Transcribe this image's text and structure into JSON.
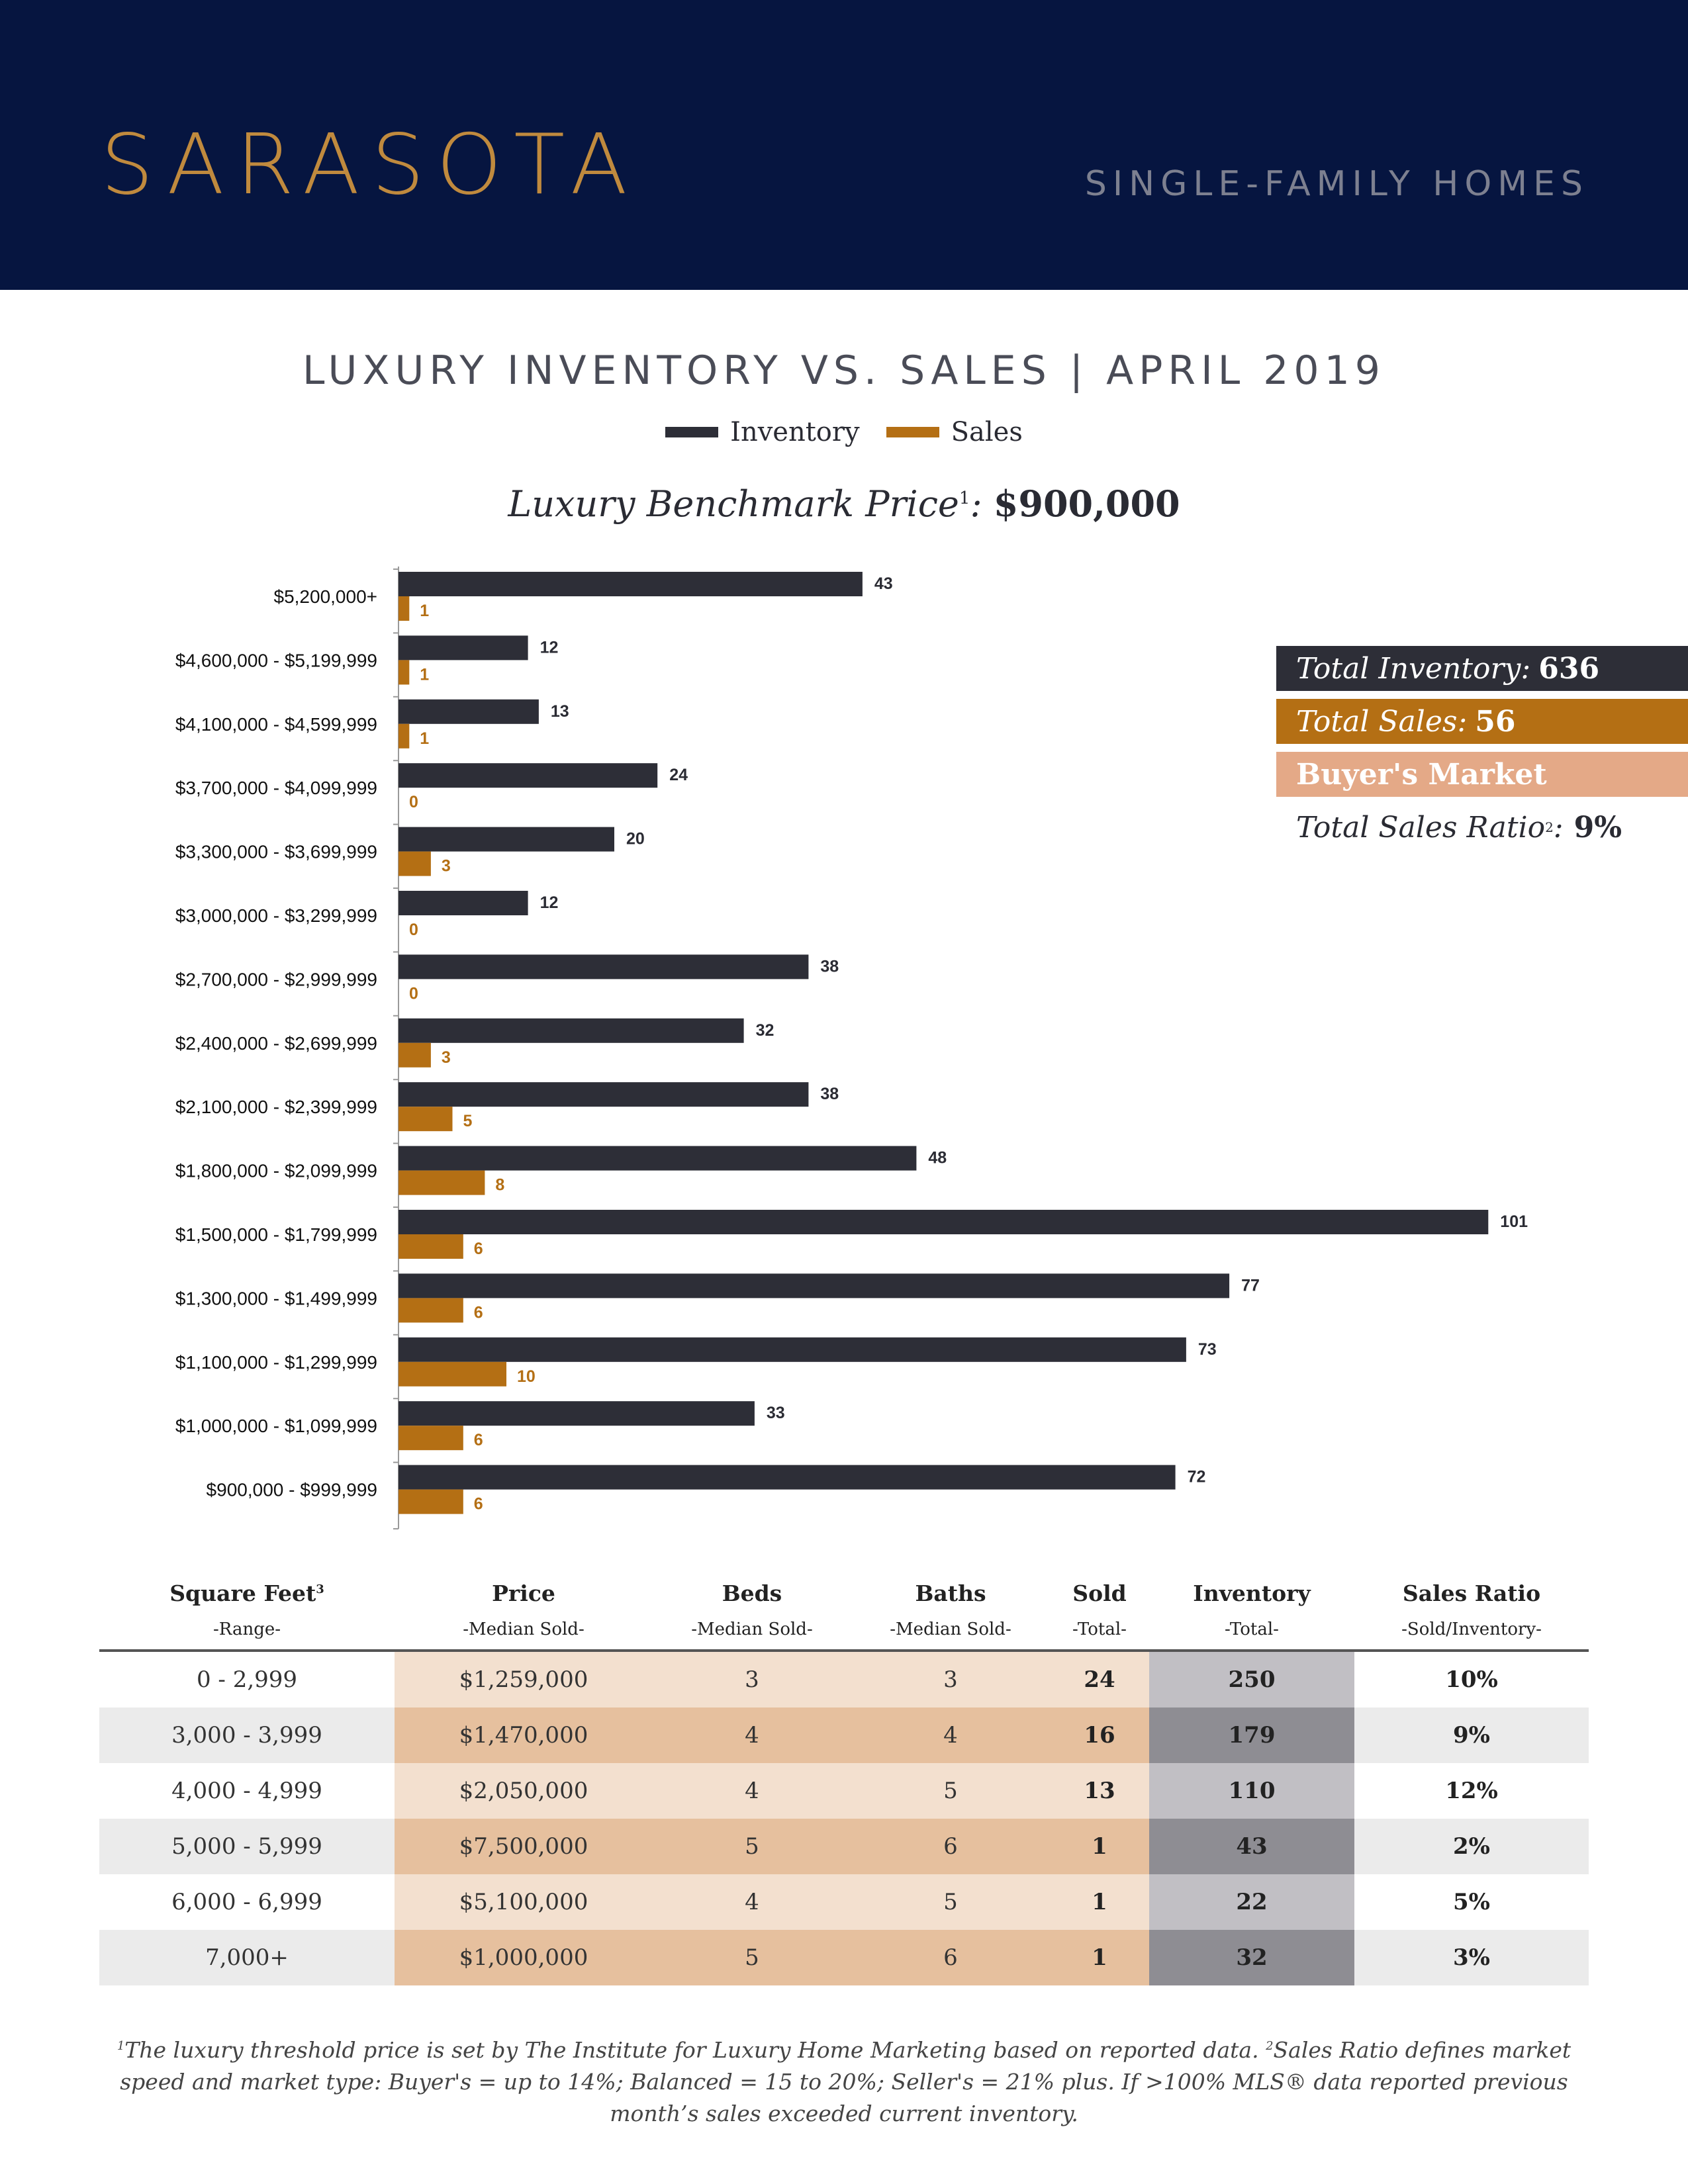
{
  "header": {
    "city": "SARASOTA",
    "subtitle": "SINGLE-FAMILY HOMES"
  },
  "colors": {
    "navy": "#061540",
    "gold": "#c08a3e",
    "inventory": "#2d2e37",
    "sales": "#b46f14",
    "market": "#e4a987"
  },
  "legend": {
    "inventory": "Inventory",
    "sales": "Sales"
  },
  "benchmark": {
    "label": "Luxury Benchmark Price",
    "sup": "1",
    "value": "$900,000"
  },
  "summary": {
    "inventory_label": "Total Inventory:",
    "inventory_value": "636",
    "sales_label": "Total Sales:",
    "sales_value": "56",
    "market": "Buyer's Market",
    "ratio_label": "Total Sales Ratio",
    "ratio_sup": "2",
    "ratio_value": "9%"
  },
  "chart_data": {
    "type": "bar",
    "orientation": "horizontal",
    "title": "LUXURY INVENTORY VS. SALES | APRIL 2019",
    "categories": [
      "$5,200,000+",
      "$4,600,000 - $5,199,999",
      "$4,100,000 - $4,599,999",
      "$3,700,000 - $4,099,999",
      "$3,300,000 - $3,699,999",
      "$3,000,000 - $3,299,999",
      "$2,700,000 - $2,999,999",
      "$2,400,000 - $2,699,999",
      "$2,100,000 - $2,399,999",
      "$1,800,000 - $2,099,999",
      "$1,500,000 - $1,799,999",
      "$1,300,000 - $1,499,999",
      "$1,100,000 - $1,299,999",
      "$1,000,000 - $1,099,999",
      "$900,000 - $999,999"
    ],
    "series": [
      {
        "name": "Inventory",
        "color": "#2d2e37",
        "values": [
          43,
          12,
          13,
          24,
          20,
          12,
          38,
          32,
          38,
          48,
          101,
          77,
          73,
          33,
          72
        ]
      },
      {
        "name": "Sales",
        "color": "#b46f14",
        "values": [
          1,
          1,
          1,
          0,
          3,
          0,
          0,
          3,
          5,
          8,
          6,
          6,
          10,
          6,
          6
        ]
      }
    ],
    "xlim": [
      0,
      101
    ],
    "legend": "top-center",
    "grid": false
  },
  "table": {
    "headers": [
      {
        "title": "Square Feet",
        "sup": "3",
        "sub": "-Range-"
      },
      {
        "title": "Price",
        "sup": "",
        "sub": "-Median Sold-"
      },
      {
        "title": "Beds",
        "sup": "",
        "sub": "-Median Sold-"
      },
      {
        "title": "Baths",
        "sup": "",
        "sub": "-Median Sold-"
      },
      {
        "title": "Sold",
        "sup": "",
        "sub": "-Total-"
      },
      {
        "title": "Inventory",
        "sup": "",
        "sub": "-Total-"
      },
      {
        "title": "Sales Ratio",
        "sup": "",
        "sub": "-Sold/Inventory-"
      }
    ],
    "rows": [
      [
        "0 - 2,999",
        "$1,259,000",
        "3",
        "3",
        "24",
        "250",
        "10%"
      ],
      [
        "3,000 - 3,999",
        "$1,470,000",
        "4",
        "4",
        "16",
        "179",
        "9%"
      ],
      [
        "4,000 - 4,999",
        "$2,050,000",
        "4",
        "5",
        "13",
        "110",
        "12%"
      ],
      [
        "5,000 - 5,999",
        "$7,500,000",
        "5",
        "6",
        "1",
        "43",
        "2%"
      ],
      [
        "6,000 - 6,999",
        "$5,100,000",
        "4",
        "5",
        "1",
        "22",
        "5%"
      ],
      [
        "7,000+",
        "$1,000,000",
        "5",
        "6",
        "1",
        "32",
        "3%"
      ]
    ]
  },
  "footnote": {
    "sup1": "1",
    "text1": "The luxury threshold price is set by The Institute for Luxury Home Marketing based on reported data.",
    "sup2": "2",
    "text2": "Sales Ratio defines market speed and market type: Buyer's = up to 14%; Balanced = 15 to 20%; Seller's = 21% plus. If >100% MLS® data reported previous month’s sales exceeded current inventory."
  }
}
